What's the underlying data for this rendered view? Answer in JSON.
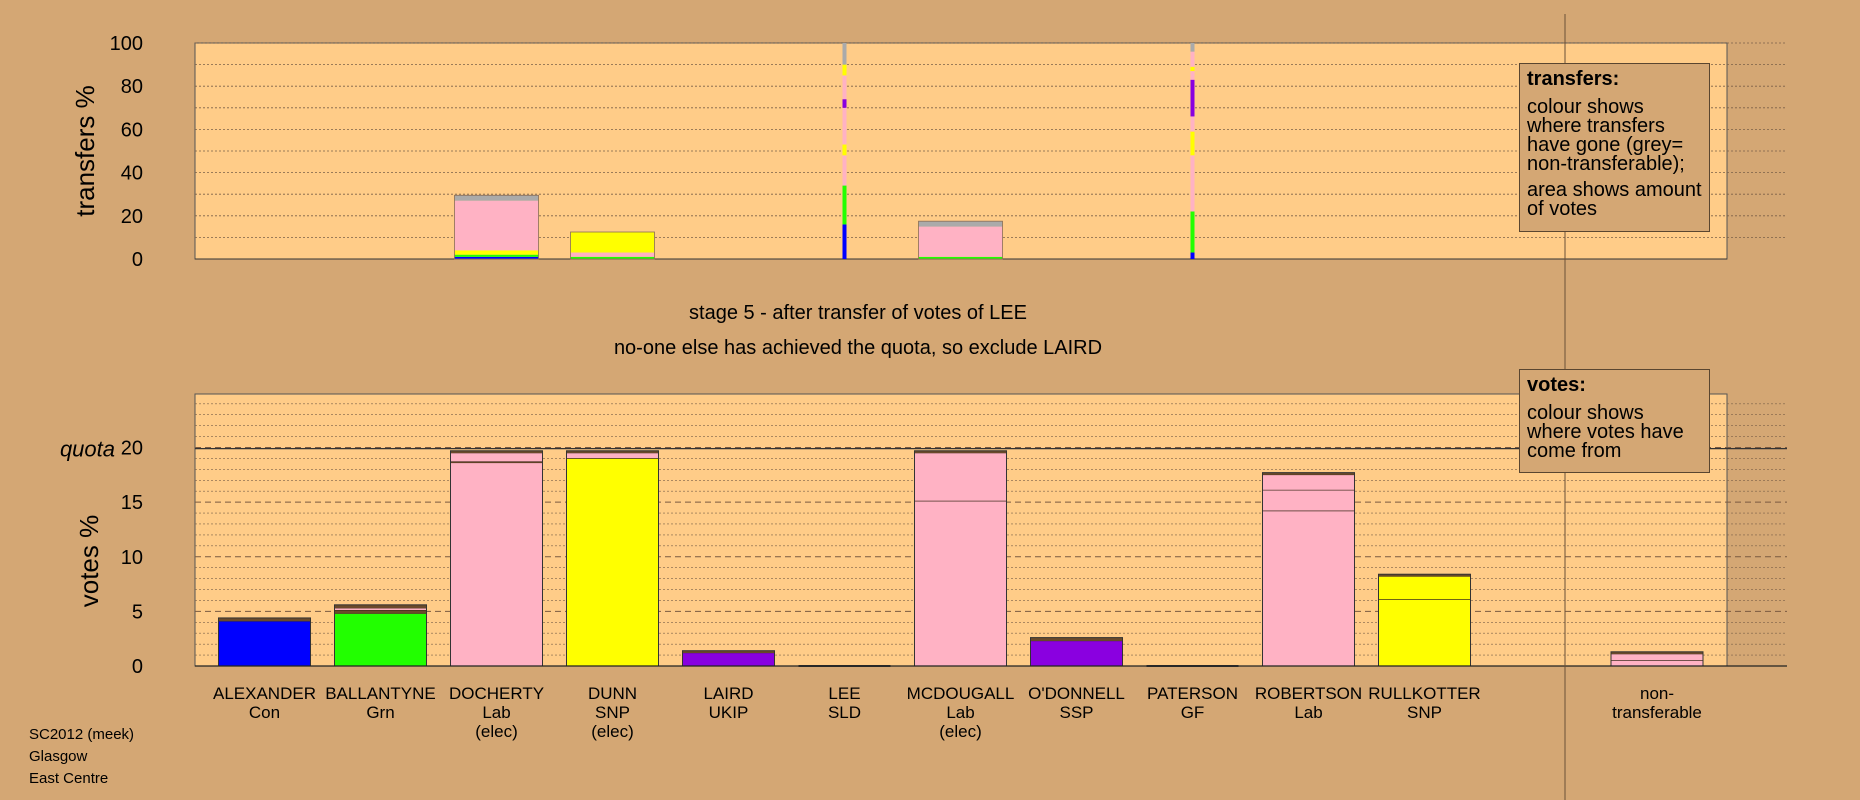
{
  "stage_title": "stage 5 - after transfer of votes of LEE",
  "stage_subtitle": "no-one else has achieved the quota, so exclude LAIRD",
  "transfers_box": {
    "title": "transfers:",
    "line1": "colour shows where transfers have gone (grey= non-transferable);",
    "line2": "area shows amount of votes"
  },
  "votes_box": {
    "title": "votes:",
    "line1": "colour shows where votes have come from"
  },
  "footer": [
    "SC2012 (meek)",
    "Glasgow",
    "East Centre"
  ],
  "colors": {
    "Con": "#0000ff",
    "Grn": "#22ff00",
    "Lab": "#ffb2c4",
    "SNP": "#ffff00",
    "UKIP": "#8800e0",
    "SSP": "#8a00e0",
    "nontransferable": "#aaaaaa",
    "plot_bg": "#ffcc88",
    "page_bg": "#d4a774",
    "prev": "#6a4a2a"
  },
  "chart_data": [
    {
      "type": "bar",
      "title": "",
      "ylabel": "transfers %",
      "ylim": [
        0,
        100
      ],
      "yticks": [
        "0",
        "20",
        "40",
        "60",
        "80",
        "100"
      ],
      "categories": [
        "ALEXANDER",
        "BALLANTYNE",
        "DOCHERTY",
        "DUNN",
        "LAIRD",
        "LEE",
        "MCDOUGALL",
        "O'DONNELL",
        "PATERSON",
        "ROBERTSON",
        "RULLKOTTER"
      ],
      "bars": [
        {
          "candidate": "DOCHERTY",
          "width": "wide",
          "segments": [
            {
              "party": "Con",
              "value": 1
            },
            {
              "party": "Grn",
              "value": 1
            },
            {
              "party": "SNP",
              "value": 2
            },
            {
              "party": "Lab",
              "value": 23
            },
            {
              "party": "nontransferable",
              "value": 2.5
            }
          ]
        },
        {
          "candidate": "DUNN",
          "width": "wide",
          "segments": [
            {
              "party": "Grn",
              "value": 1
            },
            {
              "party": "Lab",
              "value": 2
            },
            {
              "party": "SNP",
              "value": 9.5
            }
          ]
        },
        {
          "candidate": "LEE",
          "width": "thin",
          "segments": [
            {
              "party": "Con",
              "value": 16
            },
            {
              "party": "Grn",
              "value": 18
            },
            {
              "party": "Lab",
              "value": 14
            },
            {
              "party": "SNP",
              "value": 5
            },
            {
              "party": "Lab",
              "value": 17
            },
            {
              "party": "UKIP",
              "value": 4
            },
            {
              "party": "Lab",
              "value": 11
            },
            {
              "party": "SNP",
              "value": 5
            },
            {
              "party": "nontransferable",
              "value": 10
            }
          ]
        },
        {
          "candidate": "MCDOUGALL",
          "width": "wide",
          "segments": [
            {
              "party": "Grn",
              "value": 1
            },
            {
              "party": "Lab",
              "value": 14
            },
            {
              "party": "nontransferable",
              "value": 2.5
            }
          ]
        },
        {
          "candidate": "PATERSON",
          "width": "thin",
          "segments": [
            {
              "party": "Con",
              "value": 3
            },
            {
              "party": "Grn",
              "value": 19
            },
            {
              "party": "Lab",
              "value": 26
            },
            {
              "party": "SNP",
              "value": 11
            },
            {
              "party": "Lab",
              "value": 7
            },
            {
              "party": "UKIP",
              "value": 17
            },
            {
              "party": "Lab",
              "value": 4
            },
            {
              "party": "SNP",
              "value": 2
            },
            {
              "party": "Lab",
              "value": 7
            },
            {
              "party": "nontransferable",
              "value": 4
            }
          ]
        }
      ]
    },
    {
      "type": "bar",
      "title": "",
      "ylabel": "votes %",
      "ylim": [
        0,
        25
      ],
      "yticks": [
        "0",
        "5",
        "10",
        "15",
        "20"
      ],
      "quota": 19.9,
      "quota_label": "quota",
      "categories": [
        {
          "name": "ALEXANDER",
          "party": "Con",
          "elected": ""
        },
        {
          "name": "BALLANTYNE",
          "party": "Grn",
          "elected": ""
        },
        {
          "name": "DOCHERTY",
          "party": "Lab",
          "elected": "(elec)"
        },
        {
          "name": "DUNN",
          "party": "SNP",
          "elected": "(elec)"
        },
        {
          "name": "LAIRD",
          "party": "UKIP",
          "elected": ""
        },
        {
          "name": "LEE",
          "party": "SLD",
          "elected": ""
        },
        {
          "name": "MCDOUGALL",
          "party": "Lab",
          "elected": "(elec)"
        },
        {
          "name": "O'DONNELL",
          "party": "SSP",
          "elected": ""
        },
        {
          "name": "PATERSON",
          "party": "GF",
          "elected": ""
        },
        {
          "name": "ROBERTSON",
          "party": "Lab",
          "elected": ""
        },
        {
          "name": "RULLKOTTER",
          "party": "SNP",
          "elected": ""
        }
      ],
      "nontransferable_label": [
        "non-",
        "transferable"
      ],
      "series": [
        {
          "candidate": "ALEXANDER",
          "segments": [
            {
              "color": "Con",
              "value": 4.1
            },
            {
              "color": "prev",
              "value": 0.3
            }
          ]
        },
        {
          "candidate": "BALLANTYNE",
          "segments": [
            {
              "color": "Grn",
              "value": 4.8
            },
            {
              "color": "prev",
              "value": 0.3
            },
            {
              "color": "Lab",
              "value": 0.2
            },
            {
              "color": "prev",
              "value": 0.3
            }
          ]
        },
        {
          "candidate": "DOCHERTY",
          "segments": [
            {
              "color": "Lab",
              "value": 18.6
            },
            {
              "color": "prev",
              "value": 0.1
            },
            {
              "color": "Lab",
              "value": 0.8
            },
            {
              "color": "prev",
              "value": 0.2
            }
          ]
        },
        {
          "candidate": "DUNN",
          "segments": [
            {
              "color": "SNP",
              "value": 19.0
            },
            {
              "color": "Lab",
              "value": 0.5
            },
            {
              "color": "prev",
              "value": 0.2
            }
          ]
        },
        {
          "candidate": "LAIRD",
          "segments": [
            {
              "color": "UKIP",
              "value": 1.2
            },
            {
              "color": "prev",
              "value": 0.2
            }
          ]
        },
        {
          "candidate": "LEE",
          "segments": []
        },
        {
          "candidate": "MCDOUGALL",
          "segments": [
            {
              "color": "Lab",
              "value": 15.1
            },
            {
              "color": "Lab",
              "value": 4.4
            },
            {
              "color": "prev",
              "value": 0.2
            }
          ]
        },
        {
          "candidate": "O'DONNELL",
          "segments": [
            {
              "color": "SSP",
              "value": 2.3
            },
            {
              "color": "prev",
              "value": 0.3
            }
          ]
        },
        {
          "candidate": "PATERSON",
          "segments": []
        },
        {
          "candidate": "ROBERTSON",
          "segments": [
            {
              "color": "Lab",
              "value": 14.2
            },
            {
              "color": "Lab",
              "value": 1.9
            },
            {
              "color": "Lab",
              "value": 1.4
            },
            {
              "color": "prev",
              "value": 0.2
            }
          ]
        },
        {
          "candidate": "RULLKOTTER",
          "segments": [
            {
              "color": "SNP",
              "value": 6.1
            },
            {
              "color": "SNP",
              "value": 2.1
            },
            {
              "color": "prev",
              "value": 0.2
            }
          ]
        },
        {
          "candidate": "non-transferable",
          "segments": [
            {
              "color": "Lab",
              "value": 0.5
            },
            {
              "color": "Lab",
              "value": 0.6
            },
            {
              "color": "prev",
              "value": 0.2
            }
          ]
        }
      ]
    }
  ]
}
